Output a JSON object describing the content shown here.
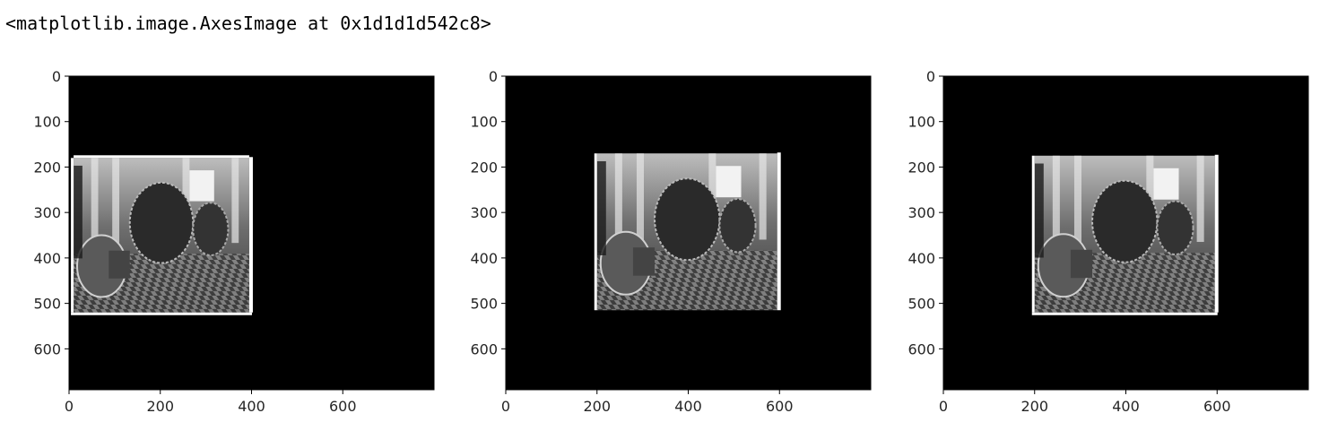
{
  "output_repr": "<matplotlib.image.AxesImage at 0x1d1d1d542c8>",
  "colors": {
    "background": "#000000",
    "frame": "#ffffff",
    "photo_dark": "#1a1a1a",
    "photo_light": "#d9d9d9"
  },
  "chart_data": [
    {
      "type": "image",
      "content": "grayscale photo of generators in a power-plant hall, placed on a black canvas",
      "xlim": [
        0,
        800
      ],
      "ylim": [
        690,
        0
      ],
      "xticks": [
        0,
        200,
        400,
        600
      ],
      "yticks": [
        0,
        100,
        200,
        300,
        400,
        500,
        600
      ],
      "photo_extent": {
        "x": [
          10,
          395
        ],
        "y": [
          180,
          520
        ]
      },
      "frame_edges": [
        "left",
        "right",
        "top",
        "bottom"
      ]
    },
    {
      "type": "image",
      "content": "grayscale photo of generators in a power-plant hall, placed on a black canvas",
      "xlim": [
        0,
        800
      ],
      "ylim": [
        690,
        0
      ],
      "xticks": [
        0,
        200,
        400,
        600
      ],
      "yticks": [
        0,
        100,
        200,
        300,
        400,
        500,
        600
      ],
      "photo_extent": {
        "x": [
          200,
          595
        ],
        "y": [
          170,
          515
        ]
      },
      "frame_edges": [
        "left",
        "right"
      ]
    },
    {
      "type": "image",
      "content": "grayscale photo of generators in a power-plant hall, placed on a black canvas",
      "xlim": [
        0,
        800
      ],
      "ylim": [
        690,
        0
      ],
      "xticks": [
        0,
        200,
        400,
        600
      ],
      "yticks": [
        0,
        100,
        200,
        300,
        400,
        500,
        600
      ],
      "photo_extent": {
        "x": [
          200,
          595
        ],
        "y": [
          175,
          520
        ]
      },
      "frame_edges": [
        "left",
        "right",
        "bottom"
      ]
    }
  ]
}
